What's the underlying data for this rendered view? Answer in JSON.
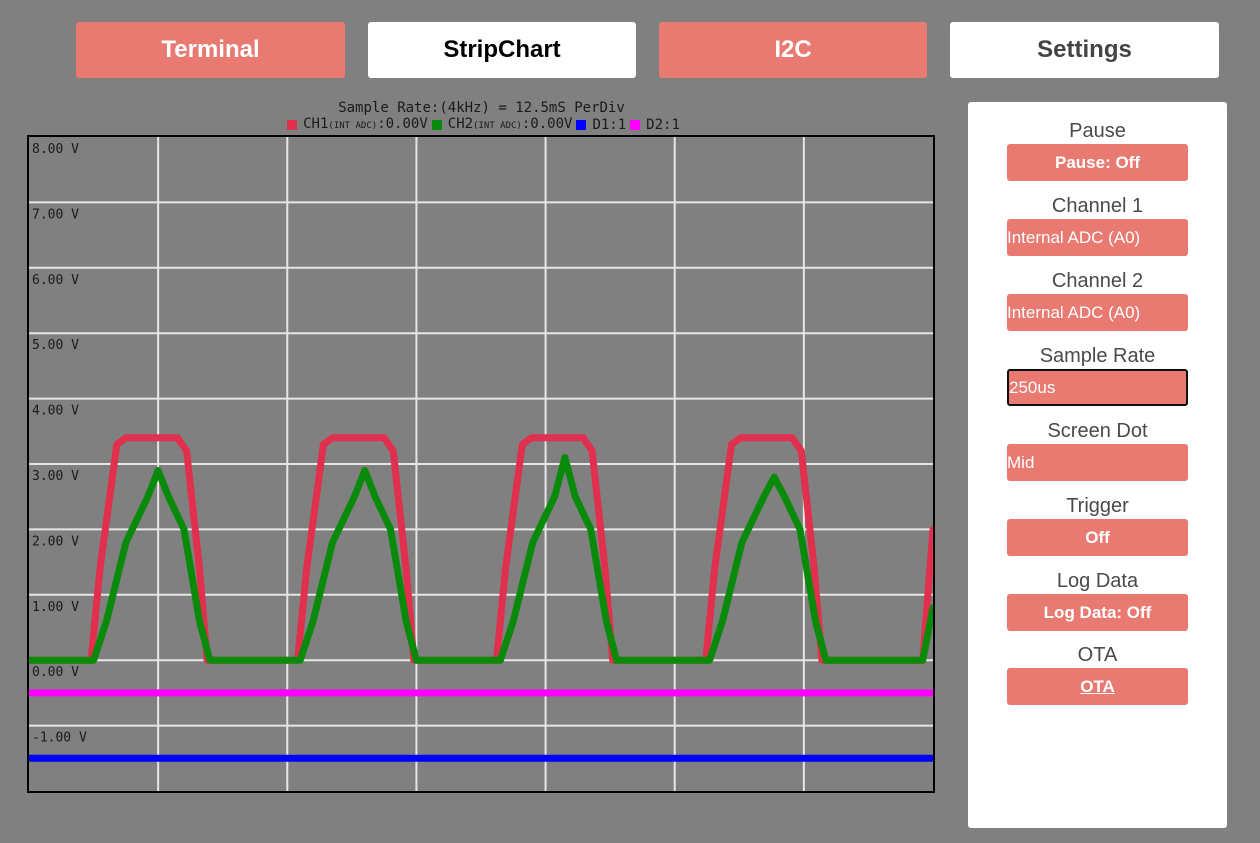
{
  "nav": {
    "terminal": "Terminal",
    "stripchart": "StripChart",
    "i2c": "I2C",
    "settings": "Settings"
  },
  "chart": {
    "title": "Sample Rate:(4kHz) = 12.5mS PerDiv",
    "legend": [
      {
        "prefix": "CH1",
        "sub": "(INT ADC)",
        "suffix": ":0.00V",
        "color": "#e0304e"
      },
      {
        "prefix": "CH2",
        "sub": "(INT ADC)",
        "suffix": ":0.00V",
        "color": "#0a8a0a"
      },
      {
        "prefix": "D1:1",
        "sub": "",
        "suffix": "",
        "color": "#0000ff"
      },
      {
        "prefix": "D2:1",
        "sub": "",
        "suffix": "",
        "color": "#ff00ff"
      }
    ]
  },
  "chart_data": {
    "type": "line",
    "title": "Sample Rate:(4kHz) = 12.5mS PerDiv",
    "xlabel": "",
    "ylabel": "",
    "ylim": [
      -2.0,
      8.0
    ],
    "yticks": [
      "8.00 V",
      "7.00 V",
      "6.00 V",
      "5.00 V",
      "4.00 V",
      "3.00 V",
      "2.00 V",
      "1.00 V",
      "0.00 V",
      "-1.00 V"
    ],
    "ytick_values": [
      8,
      7,
      6,
      5,
      4,
      3,
      2,
      1,
      0,
      -1
    ],
    "x_divisions": 7,
    "grid": true,
    "series": [
      {
        "name": "CH1",
        "color": "#e0304e",
        "points": [
          [
            0,
            0
          ],
          [
            0.48,
            0
          ],
          [
            0.55,
            1.4
          ],
          [
            0.68,
            3.3
          ],
          [
            0.75,
            3.4
          ],
          [
            1.15,
            3.4
          ],
          [
            1.22,
            3.2
          ],
          [
            1.32,
            1.4
          ],
          [
            1.38,
            0
          ],
          [
            2.08,
            0
          ],
          [
            2.15,
            1.4
          ],
          [
            2.28,
            3.3
          ],
          [
            2.35,
            3.4
          ],
          [
            2.75,
            3.4
          ],
          [
            2.82,
            3.2
          ],
          [
            2.92,
            1.4
          ],
          [
            2.98,
            0
          ],
          [
            3.62,
            0
          ],
          [
            3.69,
            1.4
          ],
          [
            3.82,
            3.3
          ],
          [
            3.89,
            3.4
          ],
          [
            4.29,
            3.4
          ],
          [
            4.36,
            3.2
          ],
          [
            4.46,
            1.4
          ],
          [
            4.52,
            0
          ],
          [
            5.24,
            0
          ],
          [
            5.31,
            1.4
          ],
          [
            5.44,
            3.3
          ],
          [
            5.51,
            3.4
          ],
          [
            5.91,
            3.4
          ],
          [
            5.98,
            3.2
          ],
          [
            6.08,
            1.4
          ],
          [
            6.14,
            0
          ],
          [
            6.92,
            0
          ],
          [
            7.0,
            2.0
          ]
        ]
      },
      {
        "name": "CH2",
        "color": "#0a8a0a",
        "points": [
          [
            0,
            0
          ],
          [
            0.5,
            0
          ],
          [
            0.6,
            0.6
          ],
          [
            0.75,
            1.8
          ],
          [
            0.92,
            2.5
          ],
          [
            1.0,
            2.9
          ],
          [
            1.08,
            2.5
          ],
          [
            1.2,
            2.0
          ],
          [
            1.32,
            0.6
          ],
          [
            1.4,
            0
          ],
          [
            2.1,
            0
          ],
          [
            2.2,
            0.6
          ],
          [
            2.35,
            1.8
          ],
          [
            2.52,
            2.5
          ],
          [
            2.6,
            2.9
          ],
          [
            2.68,
            2.5
          ],
          [
            2.8,
            2.0
          ],
          [
            2.92,
            0.6
          ],
          [
            3.0,
            0
          ],
          [
            3.65,
            0
          ],
          [
            3.75,
            0.6
          ],
          [
            3.9,
            1.8
          ],
          [
            4.07,
            2.5
          ],
          [
            4.15,
            3.1
          ],
          [
            4.23,
            2.5
          ],
          [
            4.35,
            2.0
          ],
          [
            4.47,
            0.6
          ],
          [
            4.55,
            0
          ],
          [
            5.27,
            0
          ],
          [
            5.37,
            0.6
          ],
          [
            5.52,
            1.8
          ],
          [
            5.69,
            2.5
          ],
          [
            5.77,
            2.8
          ],
          [
            5.85,
            2.5
          ],
          [
            5.97,
            2.0
          ],
          [
            6.09,
            0.6
          ],
          [
            6.17,
            0
          ],
          [
            6.92,
            0
          ],
          [
            7.0,
            0.8
          ]
        ]
      },
      {
        "name": "D1",
        "color": "#0000ff",
        "points": [
          [
            0,
            -1.5
          ],
          [
            7.0,
            -1.5
          ]
        ]
      },
      {
        "name": "D2",
        "color": "#ff00ff",
        "points": [
          [
            0,
            -0.5
          ],
          [
            7.0,
            -0.5
          ]
        ]
      }
    ]
  },
  "panel": {
    "pause": {
      "label": "Pause",
      "value": "Pause: Off"
    },
    "channel1": {
      "label": "Channel 1",
      "value": "Internal ADC (A0)"
    },
    "channel2": {
      "label": "Channel 2",
      "value": "Internal ADC (A0)"
    },
    "sample_rate": {
      "label": "Sample Rate",
      "value": "250us"
    },
    "screen_dot": {
      "label": "Screen Dot",
      "value": "Mid"
    },
    "trigger": {
      "label": "Trigger",
      "value": "Off"
    },
    "log_data": {
      "label": "Log Data",
      "value": "Log Data: Off"
    },
    "ota": {
      "label": "OTA",
      "value": "OTA"
    }
  }
}
